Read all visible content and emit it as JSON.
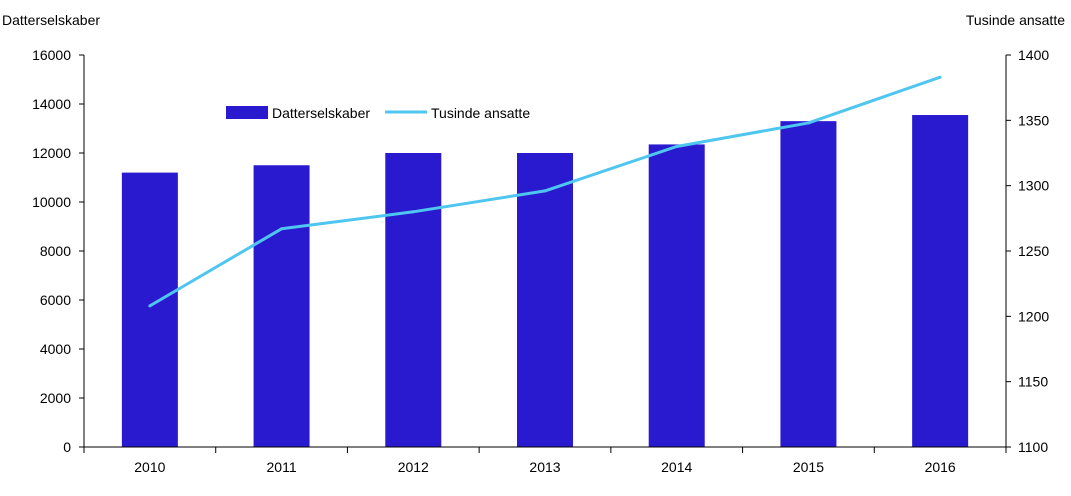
{
  "chart_data": {
    "type": "bar+line",
    "title": "",
    "categories": [
      "2010",
      "2011",
      "2012",
      "2013",
      "2014",
      "2015",
      "2016"
    ],
    "series": [
      {
        "name": "Datterselskaber",
        "type": "bar",
        "axis": "left",
        "color": "#2a1acf",
        "values": [
          11200,
          11500,
          12000,
          12000,
          12350,
          13300,
          13550
        ]
      },
      {
        "name": "Tusinde ansatte",
        "type": "line",
        "axis": "right",
        "color": "#4fc6f0",
        "values": [
          1208,
          1267,
          1280,
          1296,
          1330,
          1348,
          1383
        ]
      }
    ],
    "left_axis": {
      "label": "Datterselskaber",
      "range": [
        0,
        16000
      ],
      "ticks": [
        "0",
        "2000",
        "4000",
        "6000",
        "8000",
        "10000",
        "12000",
        "14000",
        "16000"
      ]
    },
    "right_axis": {
      "label": "Tusinde ansatte",
      "range": [
        1100,
        1400
      ],
      "ticks": [
        "1100",
        "1150",
        "1200",
        "1250",
        "1300",
        "1350",
        "1400"
      ]
    },
    "grid": false,
    "legend_position": "top-left"
  }
}
